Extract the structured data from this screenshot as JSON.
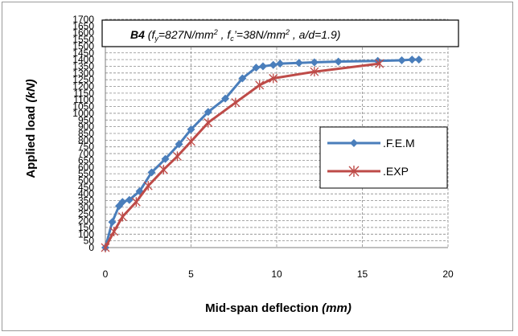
{
  "chart_data": {
    "type": "line",
    "title": {
      "specimen": "B4",
      "open": " (f",
      "sub1": "y",
      "part1": "=827N/mm",
      "sup1": "2",
      "part2": " , f",
      "sub2": "c",
      "part3": "’=38N/mm",
      "sup2": "2",
      "part4": " , a/d=1.9)"
    },
    "xlabel": {
      "main": "Mid-span deflection ",
      "unit": "(mm)"
    },
    "ylabel": {
      "main": "Applied load ",
      "unit": "(kN)"
    },
    "xlim": [
      0,
      20
    ],
    "ylim": [
      0,
      1700
    ],
    "xticks": [
      0,
      5,
      10,
      15,
      20
    ],
    "yticks": [
      0,
      50,
      100,
      150,
      200,
      250,
      300,
      350,
      400,
      450,
      500,
      550,
      600,
      650,
      700,
      750,
      800,
      850,
      900,
      950,
      1000,
      1050,
      1100,
      1150,
      1200,
      1250,
      1300,
      1350,
      1400,
      1450,
      1500,
      1550,
      1600,
      1650,
      1700
    ],
    "grid": true,
    "legend_position": "right",
    "series": [
      {
        "name": ".F.E.M",
        "color": "#4a7ebb",
        "marker": "diamond",
        "x": [
          0,
          0.4,
          0.8,
          1.0,
          1.4,
          2.0,
          2.7,
          3.5,
          4.3,
          5.0,
          6.0,
          7.0,
          8.0,
          8.8,
          9.2,
          9.8,
          10.2,
          11.3,
          12.2,
          13.6,
          15.9,
          17.3,
          17.9,
          18.3
        ],
        "y": [
          0,
          190,
          310,
          340,
          355,
          420,
          560,
          660,
          770,
          880,
          1010,
          1110,
          1260,
          1340,
          1350,
          1360,
          1370,
          1375,
          1380,
          1385,
          1390,
          1395,
          1400,
          1400
        ]
      },
      {
        "name": ".EXP",
        "color": "#be4b48",
        "marker": "star",
        "x": [
          0,
          0.5,
          1.0,
          1.8,
          2.5,
          3.4,
          4.2,
          5.0,
          6.0,
          7.6,
          9.0,
          9.8,
          12.2,
          16.0
        ],
        "y": [
          0,
          120,
          230,
          340,
          460,
          580,
          680,
          790,
          930,
          1080,
          1210,
          1260,
          1310,
          1370
        ]
      }
    ]
  }
}
